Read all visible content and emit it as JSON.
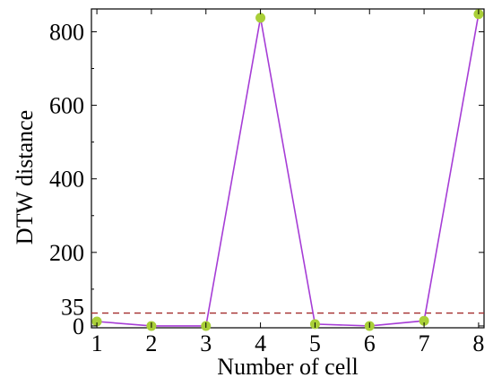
{
  "chart_data": {
    "type": "line",
    "title": "",
    "xlabel": "Number of cell",
    "ylabel": "DTW distance",
    "x": [
      1,
      2,
      3,
      4,
      5,
      6,
      7,
      8
    ],
    "series": [
      {
        "values": [
          12,
          0,
          0,
          838,
          5,
          0,
          14,
          848
        ],
        "line_color": "#a63dd6",
        "marker_color": "#a9cf38"
      }
    ],
    "xlim": [
      0.9,
      8.1
    ],
    "ylim": [
      -5,
      862
    ],
    "xticks": [
      1,
      2,
      3,
      4,
      5,
      6,
      7,
      8
    ],
    "yticks": [
      0,
      200,
      400,
      600,
      800
    ],
    "threshold": {
      "value": 35,
      "label": "35",
      "color": "#a32b2b",
      "style": "dashed"
    },
    "grid": false,
    "legend": "none"
  }
}
